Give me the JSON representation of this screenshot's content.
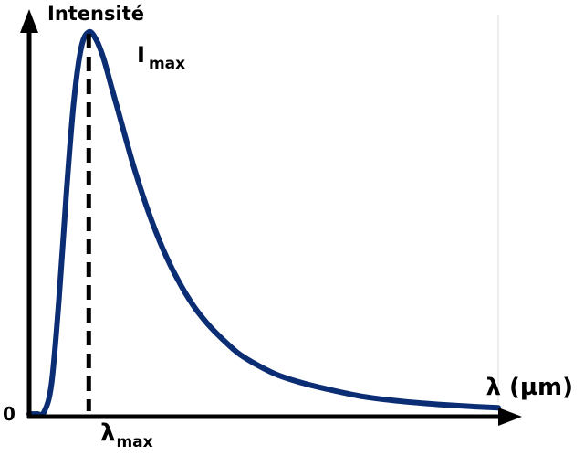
{
  "chart_data": {
    "type": "line",
    "title": "",
    "ylabel": "Intensité",
    "xlabel": "λ (µm)",
    "origin_label": "0",
    "peak": {
      "intensity_label": "I",
      "intensity_sub": "max",
      "wavelength_label": "λ",
      "wavelength_sub": "max"
    },
    "grid": false,
    "legend": "none",
    "series": [
      {
        "color": "#0b2d73",
        "x": [
          0.0,
          0.1,
          0.2,
          0.3,
          0.4,
          0.5,
          0.6,
          0.7,
          0.8,
          0.9,
          1.0,
          1.1,
          1.2,
          1.4,
          1.6,
          1.8,
          2.0,
          2.2,
          2.4,
          2.6,
          2.8,
          3.0,
          3.3,
          3.6,
          4.0,
          4.5,
          5.0,
          5.5,
          6.0,
          6.3
        ],
        "values": [
          0.0,
          0.0,
          0.005,
          0.08,
          0.3,
          0.58,
          0.82,
          0.96,
          1.0,
          0.98,
          0.93,
          0.86,
          0.79,
          0.65,
          0.53,
          0.43,
          0.35,
          0.285,
          0.235,
          0.195,
          0.16,
          0.135,
          0.105,
          0.085,
          0.065,
          0.045,
          0.033,
          0.025,
          0.019,
          0.016
        ]
      }
    ],
    "xlim": [
      0,
      6.3
    ],
    "ylim": [
      0,
      1.0
    ],
    "colors": {
      "curve": "#0b2d73",
      "axes": "#000000",
      "marker": "#000000",
      "guide": "#dddddd"
    }
  }
}
